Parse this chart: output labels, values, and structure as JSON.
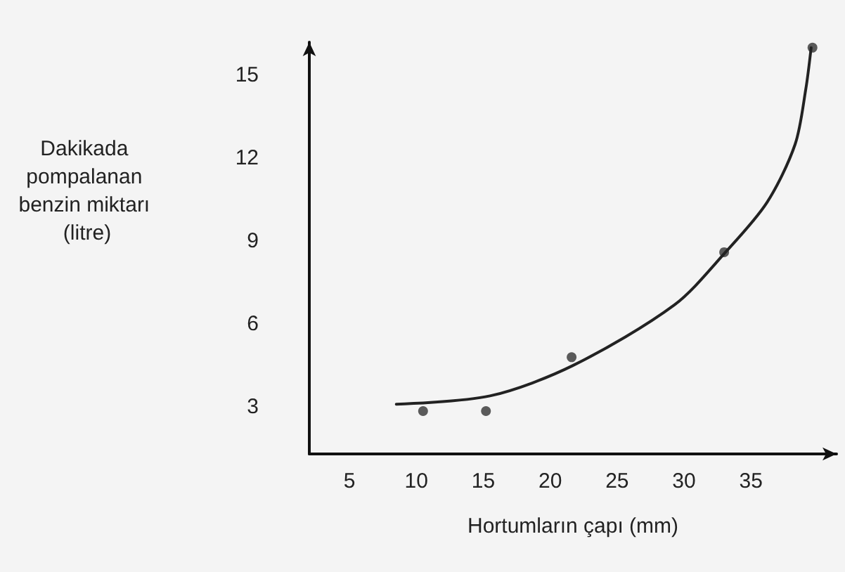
{
  "chart_data": {
    "type": "scatter",
    "xlabel": "Hortumların çapı (mm)",
    "ylabel": "Dakikada pompalanan benzin miktarı (litre)",
    "xlim": [
      2,
      41.4
    ],
    "xticks": [
      5,
      10,
      15,
      20,
      25,
      30,
      35
    ],
    "ylim": [
      1.3,
      16.2
    ],
    "yticks": [
      3,
      6,
      9,
      12,
      15
    ],
    "grid": false,
    "series": [
      {
        "color": "#333333",
        "marker": "circle",
        "x": [
          10.5,
          15.2,
          21.6,
          33.0,
          39.6
        ],
        "values": [
          2.85,
          2.85,
          4.8,
          8.6,
          16.0
        ]
      },
      {
        "type": "line",
        "color": "#222222",
        "marker": "none",
        "x": [
          8.5,
          15.5,
          21.7,
          29.3,
          33.1,
          36.2,
          38.3,
          39.1,
          39.5
        ],
        "values": [
          3.1,
          3.4,
          4.5,
          6.7,
          8.6,
          10.4,
          12.5,
          14.5,
          16.0
        ]
      }
    ]
  }
}
